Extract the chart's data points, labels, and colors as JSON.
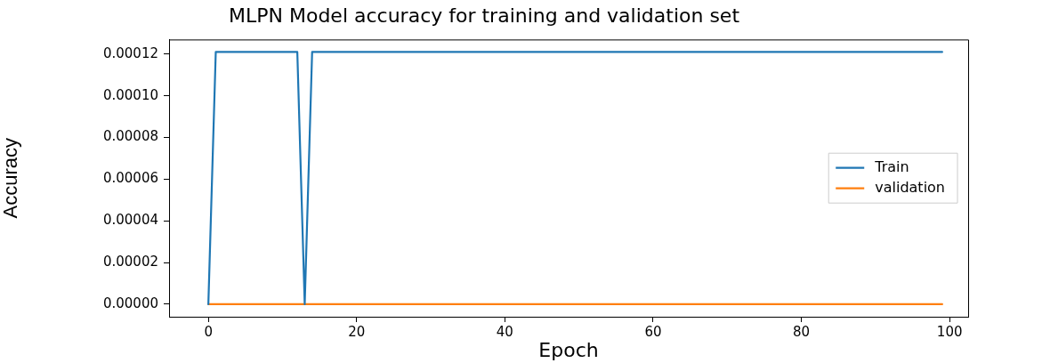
{
  "chart_data": {
    "type": "line",
    "title": "MLPN Model accuracy for training and validation set",
    "xlabel": "Epoch",
    "ylabel": "Accuracy",
    "series": [
      {
        "name": "Train",
        "color": "#1f77b4",
        "x": [
          0,
          1,
          12,
          13,
          14,
          99
        ],
        "values": [
          0,
          0.000121,
          0.000121,
          0,
          0.000121,
          0.000121
        ]
      },
      {
        "name": "validation",
        "color": "#ff7f0e",
        "x": [
          0,
          99
        ],
        "values": [
          0,
          0
        ]
      }
    ],
    "xlim": [
      -5.3,
      102.5
    ],
    "xticks": [
      0,
      20,
      40,
      60,
      80,
      100
    ],
    "ylim": [
      -6e-06,
      0.000127
    ],
    "yticks": [
      {
        "value": 0,
        "label": "0.00000"
      },
      {
        "value": 2e-05,
        "label": "0.00002"
      },
      {
        "value": 4e-05,
        "label": "0.00004"
      },
      {
        "value": 6e-05,
        "label": "0.00006"
      },
      {
        "value": 8e-05,
        "label": "0.00008"
      },
      {
        "value": 0.0001,
        "label": "0.00010"
      },
      {
        "value": 0.00012,
        "label": "0.00012"
      }
    ],
    "grid": false,
    "legend": "right",
    "marker": "none",
    "line_style": "solid"
  }
}
